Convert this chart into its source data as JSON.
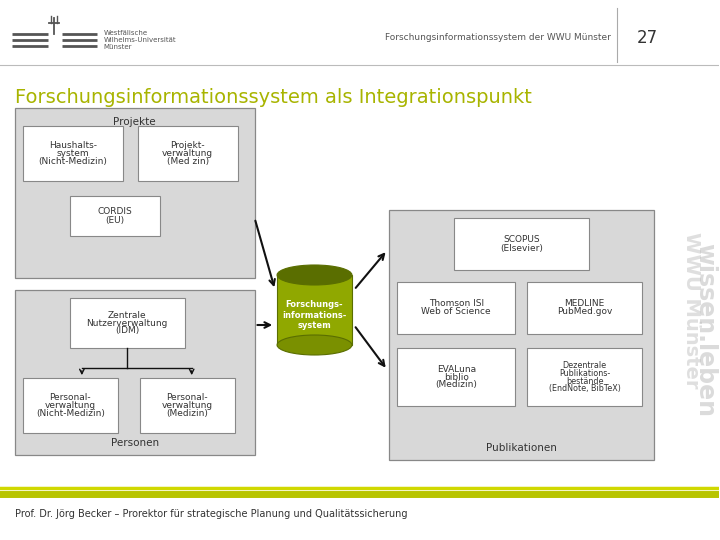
{
  "bg_color": "#ffffff",
  "header_text": "Forschungsinformationssystem der WWU Münster",
  "page_number": "27",
  "title": "Forschungsinformationssystem als Integrationspunkt",
  "title_color": "#a8b400",
  "footer_text": "Prof. Dr. Jörg Becker – Prorektor für strategische Planung und Qualitätssicherung",
  "gray_box": "#d8d8d8",
  "white_box": "#ffffff",
  "box_border": "#888888",
  "green_cyl_body": "#90a800",
  "green_cyl_top": "#6a7e00",
  "arrow_color": "#111111",
  "side_text_color": "#d0d0d0",
  "wwu_logo_color": "#555555",
  "header_sep_color": "#bbbbbb",
  "footer_line1": "#c8d400",
  "footer_line2": "#b0bc00"
}
